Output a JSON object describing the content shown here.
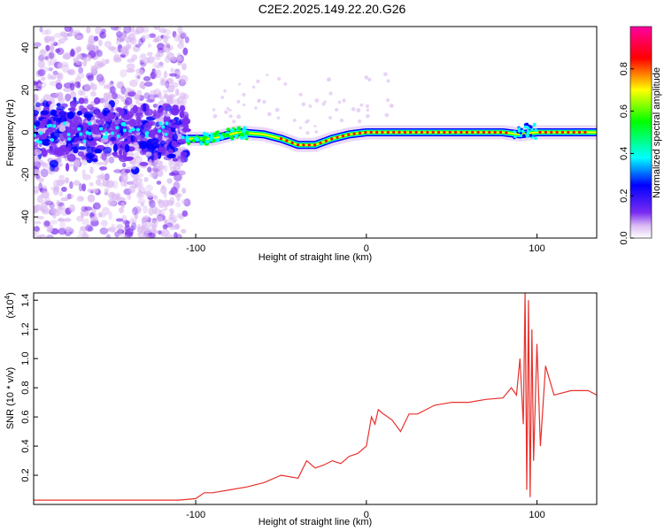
{
  "chart_data": [
    {
      "type": "heatmap",
      "title": "C2E2.2025.149.22.20.G26",
      "xlabel": "Height of straight line (km)",
      "ylabel": "Frequency (Hz)",
      "xlim": [
        -195,
        135
      ],
      "ylim": [
        -50,
        50
      ],
      "x_ticks": [
        -100,
        0,
        100
      ],
      "y_ticks": [
        -40,
        -20,
        0,
        20,
        40
      ],
      "colorbar": {
        "label": "Normalized spectral amplitude",
        "range": [
          0.0,
          1.0
        ],
        "ticks": [
          0.0,
          0.2,
          0.4,
          0.6,
          0.8
        ],
        "colors": [
          "#ffffff",
          "#d9b8f2",
          "#7a2cf0",
          "#0000ff",
          "#00ffff",
          "#00ff00",
          "#ffff00",
          "#ff0000",
          "#ff00a0"
        ]
      },
      "description_points": {
        "noise_region_x": [
          -195,
          -105
        ],
        "noise_region_y": [
          -50,
          50
        ],
        "ridge": [
          {
            "x": -105,
            "y": -3
          },
          {
            "x": -90,
            "y": -3
          },
          {
            "x": -75,
            "y": 0
          },
          {
            "x": -60,
            "y": -1
          },
          {
            "x": -50,
            "y": -3
          },
          {
            "x": -40,
            "y": -6
          },
          {
            "x": -30,
            "y": -6
          },
          {
            "x": -20,
            "y": -3
          },
          {
            "x": -10,
            "y": -1
          },
          {
            "x": 0,
            "y": 0
          },
          {
            "x": 20,
            "y": 0
          },
          {
            "x": 50,
            "y": 0
          },
          {
            "x": 80,
            "y": 0
          },
          {
            "x": 90,
            "y": -1
          },
          {
            "x": 100,
            "y": 0
          },
          {
            "x": 135,
            "y": 0
          }
        ]
      }
    },
    {
      "type": "line",
      "xlabel": "Height of straight line (km)",
      "ylabel": "SNR (10 * v/v)",
      "y_scale_label": "(x10",
      "y_scale_exp": "4",
      "xlim": [
        -195,
        135
      ],
      "ylim": [
        0.0,
        1.45
      ],
      "x_ticks": [
        -100,
        0,
        100
      ],
      "y_ticks": [
        0.2,
        0.4,
        0.6,
        0.8,
        1.0,
        1.2,
        1.4
      ],
      "series": [
        {
          "color": "#e8302c",
          "x": [
            -195,
            -180,
            -160,
            -140,
            -120,
            -110,
            -100,
            -95,
            -90,
            -80,
            -70,
            -60,
            -50,
            -40,
            -35,
            -30,
            -25,
            -20,
            -15,
            -10,
            -5,
            0,
            3,
            5,
            7,
            10,
            15,
            20,
            25,
            30,
            40,
            50,
            60,
            70,
            80,
            85,
            88,
            90,
            92,
            93,
            94,
            95,
            96,
            97,
            98,
            100,
            102,
            105,
            110,
            120,
            130,
            135
          ],
          "y": [
            0.03,
            0.03,
            0.03,
            0.03,
            0.03,
            0.03,
            0.04,
            0.08,
            0.08,
            0.1,
            0.12,
            0.15,
            0.2,
            0.18,
            0.3,
            0.25,
            0.27,
            0.3,
            0.28,
            0.33,
            0.35,
            0.4,
            0.6,
            0.55,
            0.65,
            0.62,
            0.58,
            0.5,
            0.62,
            0.62,
            0.68,
            0.7,
            0.7,
            0.72,
            0.73,
            0.8,
            0.75,
            1.0,
            0.55,
            1.45,
            0.1,
            1.4,
            0.05,
            1.2,
            0.3,
            1.1,
            0.4,
            0.95,
            0.75,
            0.78,
            0.78,
            0.75
          ]
        }
      ]
    }
  ]
}
